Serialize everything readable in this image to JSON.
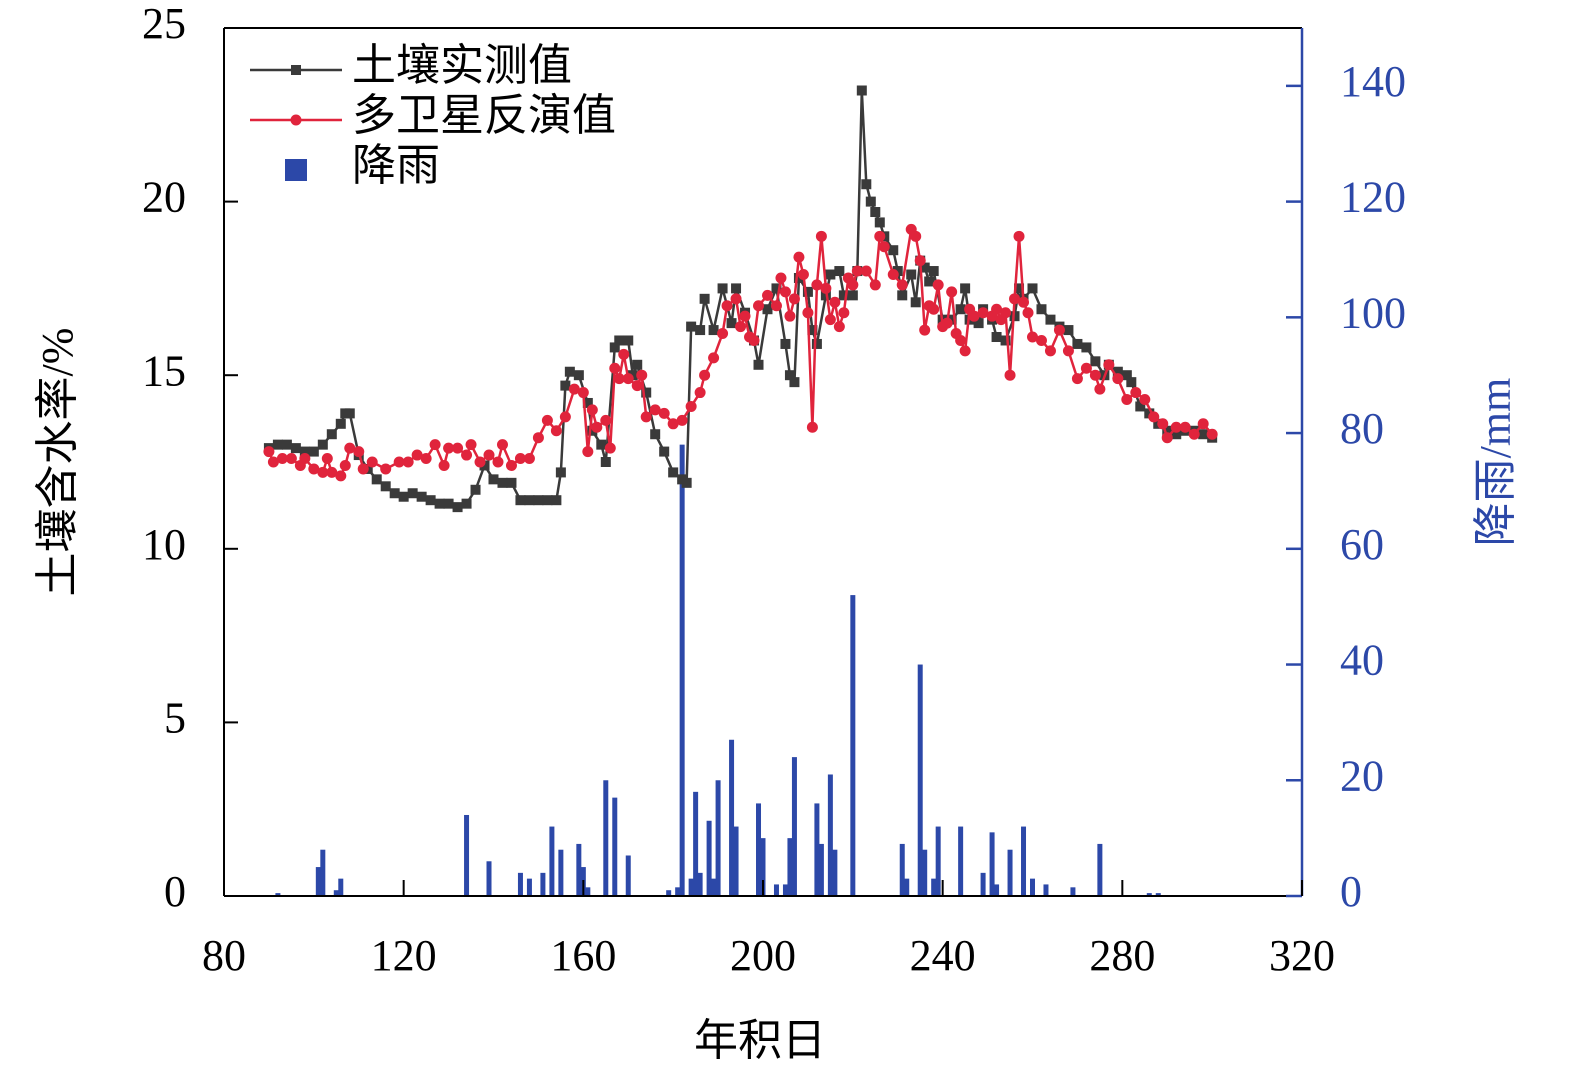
{
  "chart_data": {
    "type": "line",
    "xlabel": "年积日",
    "ylabel": "土壤含水率/%",
    "y2label": "降雨/mm",
    "xlim": [
      80,
      320
    ],
    "xticks": [
      80,
      120,
      160,
      200,
      240,
      280,
      320
    ],
    "ylim": [
      0,
      25
    ],
    "yticks": [
      0,
      5,
      10,
      15,
      20,
      25
    ],
    "y2lim": [
      0,
      150
    ],
    "y2ticks": [
      0,
      20,
      40,
      60,
      80,
      100,
      120,
      140
    ],
    "legend": "upper left",
    "series": [
      {
        "name": "土壤实测值",
        "color": "#3a3a3a",
        "type": "line",
        "marker": "square",
        "x": [
          90,
          92,
          94,
          96,
          98,
          100,
          102,
          104,
          106,
          107,
          108,
          110,
          112,
          114,
          116,
          118,
          120,
          122,
          124,
          126,
          128,
          130,
          132,
          134,
          136,
          138,
          140,
          142,
          144,
          146,
          148,
          150,
          152,
          154,
          155,
          156,
          157,
          159,
          161,
          162,
          164,
          165,
          167,
          168,
          170,
          171,
          172,
          174,
          176,
          178,
          180,
          182,
          183,
          184,
          186,
          187,
          189,
          191,
          193,
          194,
          196,
          198,
          199,
          201,
          203,
          205,
          206,
          207,
          208,
          210,
          211,
          212,
          214,
          215,
          217,
          218,
          220,
          221,
          222,
          223,
          224,
          225,
          226,
          227,
          229,
          230,
          231,
          233,
          234,
          235,
          236,
          237,
          238,
          240,
          242,
          244,
          245,
          246,
          248,
          249,
          251,
          252,
          254,
          256,
          257,
          258,
          260,
          262,
          264,
          266,
          268,
          270,
          272,
          274,
          276,
          277,
          279,
          281,
          282,
          284,
          286,
          288,
          290,
          292,
          294,
          296,
          298,
          300
        ],
        "values": [
          12.9,
          13.0,
          13.0,
          12.9,
          12.8,
          12.8,
          13.0,
          13.3,
          13.6,
          13.9,
          13.9,
          12.7,
          12.3,
          12.0,
          11.8,
          11.6,
          11.5,
          11.6,
          11.5,
          11.4,
          11.3,
          11.3,
          11.2,
          11.3,
          11.7,
          12.4,
          12.0,
          11.9,
          11.9,
          11.4,
          11.4,
          11.4,
          11.4,
          11.4,
          12.2,
          14.7,
          15.1,
          15.0,
          14.2,
          13.4,
          13.0,
          12.5,
          15.8,
          16.0,
          16.0,
          15.0,
          15.3,
          14.5,
          13.3,
          12.8,
          12.2,
          12.0,
          11.9,
          16.4,
          16.3,
          17.2,
          16.3,
          17.5,
          16.5,
          17.5,
          16.8,
          16.0,
          15.3,
          16.9,
          17.5,
          15.9,
          15.0,
          14.8,
          17.8,
          17.4,
          16.3,
          15.9,
          17.3,
          17.9,
          18.0,
          17.3,
          17.3,
          18.0,
          23.2,
          20.5,
          20.0,
          19.7,
          19.4,
          19.0,
          18.6,
          18.0,
          17.3,
          17.9,
          17.1,
          18.3,
          18.1,
          17.7,
          18.0,
          16.6,
          16.6,
          16.9,
          17.5,
          16.6,
          16.5,
          16.9,
          16.6,
          16.1,
          16.0,
          16.7,
          17.5,
          17.2,
          17.5,
          16.9,
          16.6,
          16.4,
          16.3,
          15.9,
          15.8,
          15.4,
          15.0,
          15.3,
          15.1,
          15.0,
          14.8,
          14.1,
          13.9,
          13.6,
          13.4,
          13.3,
          13.4,
          13.4,
          13.3,
          13.2
        ]
      },
      {
        "name": "多卫星反演值",
        "color": "#e0243c",
        "type": "line",
        "marker": "circle",
        "x": [
          90,
          91,
          93,
          95,
          97,
          98,
          100,
          102,
          103,
          104,
          106,
          107,
          108,
          110,
          111,
          113,
          116,
          119,
          121,
          123,
          125,
          127,
          129,
          130,
          132,
          134,
          135,
          137,
          139,
          141,
          142,
          144,
          146,
          148,
          150,
          152,
          154,
          156,
          158,
          160,
          161,
          162,
          163,
          165,
          166,
          167,
          168,
          169,
          170,
          172,
          173,
          174,
          176,
          178,
          180,
          182,
          184,
          186,
          187,
          189,
          191,
          192,
          194,
          195,
          196,
          197,
          198,
          199,
          201,
          203,
          204,
          205,
          206,
          207,
          208,
          209,
          210,
          211,
          212,
          213,
          214,
          215,
          216,
          217,
          218,
          219,
          220,
          221,
          223,
          225,
          226,
          227,
          229,
          231,
          233,
          234,
          235,
          236,
          237,
          238,
          239,
          240,
          241,
          242,
          243,
          244,
          245,
          246,
          247,
          249,
          251,
          252,
          253,
          254,
          255,
          256,
          257,
          258,
          259,
          260,
          262,
          264,
          266,
          268,
          270,
          272,
          274,
          275,
          277,
          279,
          281,
          283,
          285,
          287,
          289,
          290,
          292,
          294,
          296,
          298,
          300
        ],
        "values": [
          12.8,
          12.5,
          12.6,
          12.6,
          12.4,
          12.6,
          12.3,
          12.2,
          12.6,
          12.2,
          12.1,
          12.4,
          12.9,
          12.8,
          12.3,
          12.5,
          12.3,
          12.5,
          12.5,
          12.7,
          12.6,
          13.0,
          12.4,
          12.9,
          12.9,
          12.7,
          13.0,
          12.5,
          12.7,
          12.5,
          13.0,
          12.4,
          12.6,
          12.6,
          13.2,
          13.7,
          13.4,
          13.8,
          14.6,
          14.5,
          12.8,
          14.0,
          13.5,
          13.7,
          12.9,
          15.2,
          14.9,
          15.6,
          14.9,
          14.7,
          15.0,
          13.8,
          14.0,
          13.9,
          13.6,
          13.7,
          14.1,
          14.5,
          15.0,
          15.5,
          16.2,
          17.0,
          17.2,
          16.4,
          16.7,
          16.1,
          16.0,
          17.0,
          17.3,
          17.0,
          17.8,
          17.4,
          16.7,
          17.2,
          18.4,
          17.9,
          16.8,
          13.5,
          17.6,
          19.0,
          17.5,
          16.6,
          17.1,
          16.4,
          16.8,
          17.8,
          17.6,
          18.0,
          18.0,
          17.6,
          19.0,
          18.7,
          17.9,
          17.6,
          19.2,
          19.0,
          18.3,
          16.3,
          17.0,
          16.9,
          17.6,
          16.4,
          16.5,
          17.4,
          16.2,
          16.0,
          15.7,
          16.9,
          16.7,
          16.8,
          16.7,
          16.9,
          16.6,
          16.8,
          15.0,
          17.2,
          19.0,
          17.1,
          16.8,
          16.1,
          16.0,
          15.7,
          16.3,
          15.7,
          14.9,
          15.2,
          15.0,
          14.6,
          15.3,
          14.9,
          14.3,
          14.5,
          14.3,
          13.8,
          13.6,
          13.2,
          13.5,
          13.5,
          13.3,
          13.6,
          13.3
        ]
      },
      {
        "name": "降雨",
        "color": "#2c48a8",
        "type": "bar",
        "axis": "y2",
        "x": [
          92,
          101,
          102,
          105,
          106,
          134,
          139,
          146,
          148,
          151,
          153,
          155,
          159,
          160,
          161,
          165,
          167,
          170,
          179,
          181,
          182,
          184,
          185,
          186,
          188,
          189,
          190,
          193,
          194,
          199,
          200,
          203,
          205,
          206,
          207,
          212,
          213,
          215,
          216,
          220,
          231,
          232,
          235,
          236,
          238,
          239,
          244,
          249,
          251,
          252,
          255,
          258,
          260,
          263,
          269,
          275,
          286,
          288
        ],
        "values": [
          0.5,
          5,
          8,
          1,
          3,
          14,
          6,
          4,
          3,
          4,
          12,
          8,
          9,
          5,
          1.5,
          20,
          17,
          7,
          1,
          1.5,
          78,
          3,
          18,
          4,
          13,
          3,
          20,
          27,
          12,
          16,
          10,
          2,
          2,
          10,
          24,
          16,
          9,
          21,
          8,
          52,
          9,
          3,
          40,
          8,
          3,
          12,
          12,
          4,
          11,
          2,
          8,
          12,
          3,
          2,
          1.5,
          9,
          0.5,
          0.5
        ]
      }
    ]
  }
}
